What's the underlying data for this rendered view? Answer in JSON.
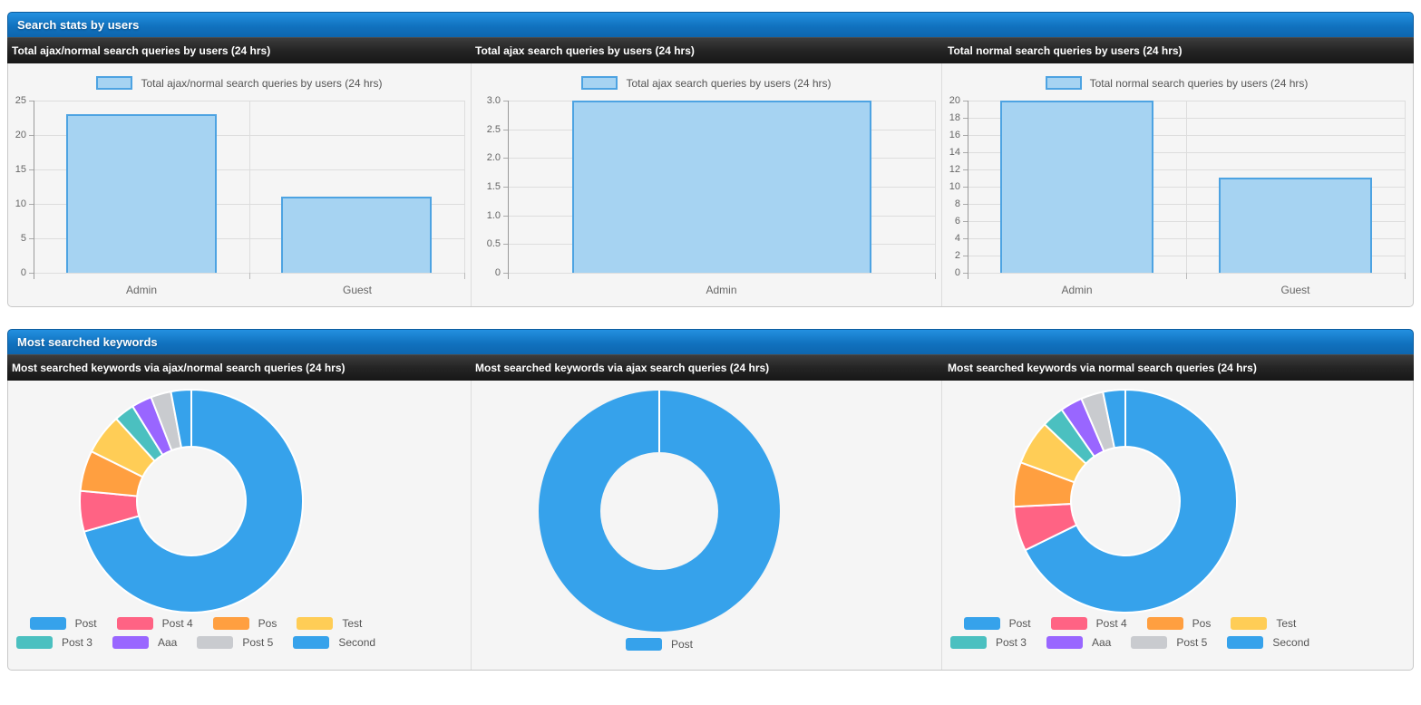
{
  "sections": [
    {
      "title": "Search stats by users"
    },
    {
      "title": "Most searched keywords"
    }
  ],
  "colors": {
    "bar_fill": "#a6d3f2",
    "bar_border": "#4da3e2",
    "accent_blue_header": "#1172bf",
    "subheader_dark": "#242424"
  },
  "chart_data": [
    {
      "type": "bar",
      "panel_title": "Total ajax/normal search queries by users (24 hrs)",
      "legend_label": "Total ajax/normal search queries by users (24 hrs)",
      "categories": [
        "Admin",
        "Guest"
      ],
      "values": [
        23,
        11
      ],
      "ylim": [
        0,
        25
      ],
      "ytick_labels": [
        "25",
        "20",
        "15",
        "10",
        "5",
        "0"
      ],
      "grid": true,
      "legend_position": "top"
    },
    {
      "type": "bar",
      "panel_title": "Total ajax search queries by users (24 hrs)",
      "legend_label": "Total ajax search queries by users (24 hrs)",
      "categories": [
        "Admin"
      ],
      "values": [
        3
      ],
      "ylim": [
        0,
        3
      ],
      "ytick_labels": [
        "3.0",
        "2.5",
        "2.0",
        "1.5",
        "1.0",
        "0.5",
        "0"
      ],
      "grid": true,
      "legend_position": "top"
    },
    {
      "type": "bar",
      "panel_title": "Total normal search queries by users (24 hrs)",
      "legend_label": "Total normal search queries by users (24 hrs)",
      "categories": [
        "Admin",
        "Guest"
      ],
      "values": [
        20,
        11
      ],
      "ylim": [
        0,
        20
      ],
      "ytick_labels": [
        "20",
        "18",
        "16",
        "14",
        "12",
        "10",
        "8",
        "6",
        "4",
        "2",
        "0"
      ],
      "grid": true,
      "legend_position": "top"
    },
    {
      "type": "donut",
      "panel_title": "Most searched keywords via ajax/normal search queries (24 hrs)",
      "labels": [
        "Post",
        "Post 4",
        "Pos",
        "Test",
        "Post 3",
        "Aaa",
        "Post 5",
        "Second"
      ],
      "values": [
        24,
        2,
        2,
        2,
        1,
        1,
        1,
        1
      ],
      "colors": [
        "#36a2eb",
        "#ff6384",
        "#ff9f40",
        "#ffcd56",
        "#4bc0c0",
        "#9966ff",
        "#c9cbcf",
        "#36a2eb"
      ],
      "legend_position": "bottom"
    },
    {
      "type": "donut",
      "panel_title": "Most searched keywords via ajax search queries (24 hrs)",
      "labels": [
        "Post"
      ],
      "values": [
        3
      ],
      "colors": [
        "#36a2eb"
      ],
      "legend_position": "bottom"
    },
    {
      "type": "donut",
      "panel_title": "Most searched keywords via normal search queries (24 hrs)",
      "labels": [
        "Post",
        "Post 4",
        "Pos",
        "Test",
        "Post 3",
        "Aaa",
        "Post 5",
        "Second"
      ],
      "values": [
        21,
        2,
        2,
        2,
        1,
        1,
        1,
        1
      ],
      "colors": [
        "#36a2eb",
        "#ff6384",
        "#ff9f40",
        "#ffcd56",
        "#4bc0c0",
        "#9966ff",
        "#c9cbcf",
        "#36a2eb"
      ],
      "legend_position": "bottom"
    }
  ]
}
